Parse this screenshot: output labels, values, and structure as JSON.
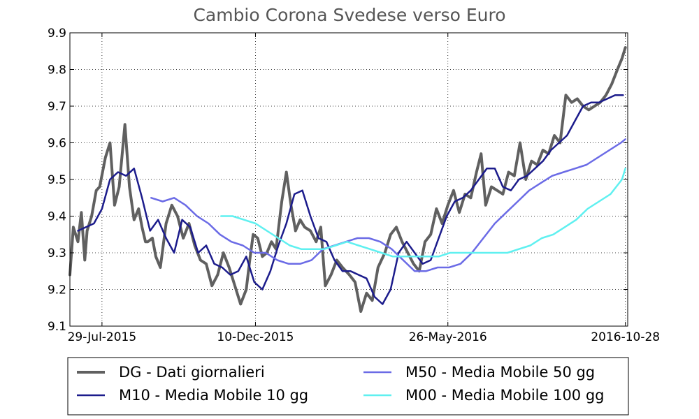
{
  "chart_data": {
    "type": "line",
    "title": "Cambio Corona  Svedese verso Euro",
    "xlabel": "",
    "ylabel": "",
    "ylim": [
      9.1,
      9.9
    ],
    "yticks": [
      "9.1",
      "9.2",
      "9.3",
      "9.4",
      "9.5",
      "9.6",
      "9.7",
      "9.8",
      "9.9"
    ],
    "xlim": [
      "2015-07-01",
      "2016-10-30"
    ],
    "xticks": [
      {
        "date": "2015-07-29",
        "label": "29-Jul-2015"
      },
      {
        "date": "2015-12-10",
        "label": "10-Dec-2015"
      },
      {
        "date": "2016-05-26",
        "label": "26-May-2016"
      },
      {
        "date": "2016-10-28",
        "label": "2016-10-28"
      }
    ],
    "grid": true,
    "legend": "bottom",
    "series": [
      {
        "name": "DG - Dati giornalieri",
        "color": "#606060",
        "x": [
          "2015-07-01",
          "2015-07-04",
          "2015-07-08",
          "2015-07-11",
          "2015-07-14",
          "2015-07-16",
          "2015-07-20",
          "2015-07-24",
          "2015-07-27",
          "2015-08-01",
          "2015-08-05",
          "2015-08-09",
          "2015-08-13",
          "2015-08-18",
          "2015-08-22",
          "2015-08-26",
          "2015-08-30",
          "2015-09-02",
          "2015-09-05",
          "2015-09-07",
          "2015-09-11",
          "2015-09-14",
          "2015-09-18",
          "2015-09-23",
          "2015-09-28",
          "2015-10-03",
          "2015-10-08",
          "2015-10-13",
          "2015-10-18",
          "2015-10-23",
          "2015-10-28",
          "2015-11-02",
          "2015-11-07",
          "2015-11-12",
          "2015-11-17",
          "2015-11-22",
          "2015-11-27",
          "2015-12-02",
          "2015-12-05",
          "2015-12-08",
          "2015-12-12",
          "2015-12-16",
          "2015-12-20",
          "2015-12-24",
          "2015-12-28",
          "2016-01-02",
          "2016-01-06",
          "2016-01-10",
          "2016-01-14",
          "2016-01-18",
          "2016-01-22",
          "2016-01-27",
          "2016-02-01",
          "2016-02-05",
          "2016-02-09",
          "2016-02-14",
          "2016-02-19",
          "2016-02-24",
          "2016-03-01",
          "2016-03-06",
          "2016-03-11",
          "2016-03-16",
          "2016-03-21",
          "2016-03-26",
          "2016-04-01",
          "2016-04-06",
          "2016-04-11",
          "2016-04-16",
          "2016-04-21",
          "2016-04-26",
          "2016-05-01",
          "2016-05-06",
          "2016-05-11",
          "2016-05-16",
          "2016-05-21",
          "2016-05-26",
          "2016-05-31",
          "2016-06-05",
          "2016-06-10",
          "2016-06-15",
          "2016-06-20",
          "2016-06-24",
          "2016-06-28",
          "2016-07-03",
          "2016-07-08",
          "2016-07-13",
          "2016-07-18",
          "2016-07-23",
          "2016-07-28",
          "2016-08-02",
          "2016-08-07",
          "2016-08-12",
          "2016-08-17",
          "2016-08-22",
          "2016-08-27",
          "2016-09-01",
          "2016-09-06",
          "2016-09-11",
          "2016-09-16",
          "2016-09-21",
          "2016-09-26",
          "2016-10-01",
          "2016-10-06",
          "2016-10-11",
          "2016-10-16",
          "2016-10-21",
          "2016-10-25",
          "2016-10-28"
        ],
        "values": [
          9.24,
          9.37,
          9.33,
          9.41,
          9.28,
          9.36,
          9.4,
          9.47,
          9.48,
          9.56,
          9.6,
          9.43,
          9.48,
          9.65,
          9.48,
          9.39,
          9.42,
          9.37,
          9.33,
          9.33,
          9.34,
          9.29,
          9.26,
          9.38,
          9.43,
          9.4,
          9.34,
          9.38,
          9.32,
          9.28,
          9.27,
          9.21,
          9.24,
          9.3,
          9.26,
          9.21,
          9.16,
          9.2,
          9.28,
          9.35,
          9.34,
          9.29,
          9.3,
          9.33,
          9.31,
          9.44,
          9.52,
          9.43,
          9.36,
          9.39,
          9.37,
          9.36,
          9.33,
          9.37,
          9.21,
          9.24,
          9.28,
          9.26,
          9.24,
          9.22,
          9.14,
          9.19,
          9.17,
          9.26,
          9.3,
          9.35,
          9.37,
          9.33,
          9.3,
          9.27,
          9.25,
          9.33,
          9.35,
          9.42,
          9.38,
          9.43,
          9.47,
          9.41,
          9.46,
          9.45,
          9.52,
          9.57,
          9.43,
          9.48,
          9.47,
          9.46,
          9.52,
          9.51,
          9.6,
          9.5,
          9.55,
          9.54,
          9.58,
          9.57,
          9.62,
          9.6,
          9.73,
          9.71,
          9.72,
          9.7,
          9.69,
          9.7,
          9.71,
          9.73,
          9.76,
          9.8,
          9.83,
          9.86
        ]
      },
      {
        "name": "M10 - Media Mobile 10 gg",
        "color": "#1c1c8c",
        "x": [
          "2015-07-08",
          "2015-07-15",
          "2015-07-22",
          "2015-07-29",
          "2015-08-05",
          "2015-08-12",
          "2015-08-19",
          "2015-08-26",
          "2015-09-02",
          "2015-09-09",
          "2015-09-16",
          "2015-09-23",
          "2015-09-30",
          "2015-10-07",
          "2015-10-14",
          "2015-10-21",
          "2015-10-28",
          "2015-11-04",
          "2015-11-11",
          "2015-11-18",
          "2015-11-25",
          "2015-12-02",
          "2015-12-09",
          "2015-12-16",
          "2015-12-23",
          "2015-12-30",
          "2016-01-06",
          "2016-01-13",
          "2016-01-20",
          "2016-01-27",
          "2016-02-03",
          "2016-02-10",
          "2016-02-17",
          "2016-02-24",
          "2016-03-02",
          "2016-03-09",
          "2016-03-16",
          "2016-03-23",
          "2016-03-30",
          "2016-04-06",
          "2016-04-13",
          "2016-04-20",
          "2016-04-27",
          "2016-05-04",
          "2016-05-11",
          "2016-05-18",
          "2016-05-25",
          "2016-06-01",
          "2016-06-08",
          "2016-06-15",
          "2016-06-22",
          "2016-06-29",
          "2016-07-06",
          "2016-07-13",
          "2016-07-20",
          "2016-07-27",
          "2016-08-03",
          "2016-08-10",
          "2016-08-17",
          "2016-08-24",
          "2016-08-31",
          "2016-09-07",
          "2016-09-14",
          "2016-09-21",
          "2016-09-28",
          "2016-10-05",
          "2016-10-12",
          "2016-10-19",
          "2016-10-26"
        ],
        "values": [
          9.36,
          9.37,
          9.38,
          9.42,
          9.5,
          9.52,
          9.51,
          9.53,
          9.45,
          9.36,
          9.39,
          9.34,
          9.3,
          9.39,
          9.37,
          9.3,
          9.32,
          9.27,
          9.26,
          9.24,
          9.25,
          9.29,
          9.22,
          9.2,
          9.25,
          9.32,
          9.38,
          9.46,
          9.47,
          9.4,
          9.34,
          9.33,
          9.28,
          9.25,
          9.25,
          9.24,
          9.23,
          9.18,
          9.16,
          9.2,
          9.3,
          9.33,
          9.3,
          9.27,
          9.28,
          9.34,
          9.4,
          9.44,
          9.45,
          9.47,
          9.5,
          9.53,
          9.53,
          9.48,
          9.47,
          9.5,
          9.51,
          9.53,
          9.55,
          9.58,
          9.6,
          9.62,
          9.66,
          9.7,
          9.71,
          9.71,
          9.72,
          9.73,
          9.73
        ]
      },
      {
        "name": "M50 - Media Mobile 50 gg",
        "color": "#6b6be6",
        "x": [
          "2015-09-10",
          "2015-09-20",
          "2015-09-30",
          "2015-10-10",
          "2015-10-20",
          "2015-10-30",
          "2015-11-09",
          "2015-11-19",
          "2015-11-29",
          "2015-12-09",
          "2015-12-19",
          "2015-12-29",
          "2016-01-08",
          "2016-01-18",
          "2016-01-28",
          "2016-02-07",
          "2016-02-17",
          "2016-02-27",
          "2016-03-08",
          "2016-03-18",
          "2016-03-28",
          "2016-04-07",
          "2016-04-17",
          "2016-04-27",
          "2016-05-07",
          "2016-05-17",
          "2016-05-27",
          "2016-06-06",
          "2016-06-16",
          "2016-06-26",
          "2016-07-06",
          "2016-07-16",
          "2016-07-26",
          "2016-08-05",
          "2016-08-15",
          "2016-08-25",
          "2016-09-04",
          "2016-09-14",
          "2016-09-24",
          "2016-10-04",
          "2016-10-14",
          "2016-10-24",
          "2016-10-28"
        ],
        "values": [
          9.45,
          9.44,
          9.45,
          9.43,
          9.4,
          9.38,
          9.35,
          9.33,
          9.32,
          9.3,
          9.3,
          9.28,
          9.27,
          9.27,
          9.28,
          9.31,
          9.32,
          9.33,
          9.34,
          9.34,
          9.33,
          9.31,
          9.28,
          9.25,
          9.25,
          9.26,
          9.26,
          9.27,
          9.3,
          9.34,
          9.38,
          9.41,
          9.44,
          9.47,
          9.49,
          9.51,
          9.52,
          9.53,
          9.54,
          9.56,
          9.58,
          9.6,
          9.61
        ]
      },
      {
        "name": "M00 - Media Mobile 100 gg",
        "color": "#5ff0f0",
        "x": [
          "2015-11-10",
          "2015-11-20",
          "2015-11-30",
          "2015-12-10",
          "2015-12-20",
          "2015-12-30",
          "2016-01-09",
          "2016-01-19",
          "2016-01-29",
          "2016-02-08",
          "2016-02-18",
          "2016-02-28",
          "2016-03-09",
          "2016-03-19",
          "2016-03-29",
          "2016-04-08",
          "2016-04-18",
          "2016-04-28",
          "2016-05-08",
          "2016-05-18",
          "2016-05-28",
          "2016-06-07",
          "2016-06-17",
          "2016-06-27",
          "2016-07-07",
          "2016-07-17",
          "2016-07-27",
          "2016-08-06",
          "2016-08-16",
          "2016-08-26",
          "2016-09-05",
          "2016-09-15",
          "2016-09-25",
          "2016-10-05",
          "2016-10-15",
          "2016-10-25",
          "2016-10-28"
        ],
        "values": [
          9.4,
          9.4,
          9.39,
          9.38,
          9.36,
          9.34,
          9.32,
          9.31,
          9.31,
          9.31,
          9.32,
          9.33,
          9.32,
          9.31,
          9.3,
          9.29,
          9.29,
          9.29,
          9.29,
          9.29,
          9.3,
          9.3,
          9.3,
          9.3,
          9.3,
          9.3,
          9.31,
          9.32,
          9.34,
          9.35,
          9.37,
          9.39,
          9.42,
          9.44,
          9.46,
          9.5,
          9.53
        ]
      }
    ]
  }
}
